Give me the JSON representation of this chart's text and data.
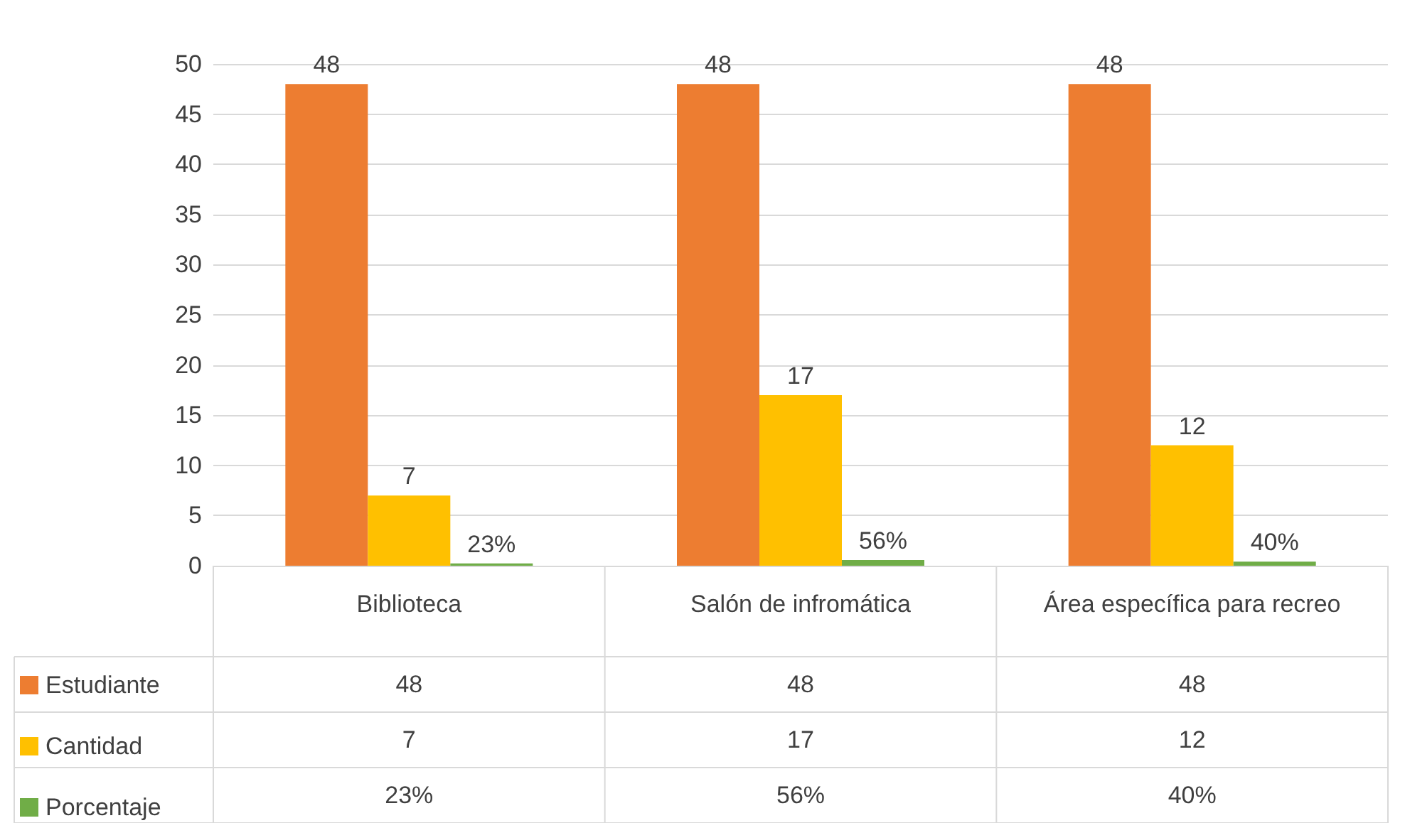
{
  "chart_data": {
    "type": "bar",
    "categories": [
      "Biblioteca",
      "Salón de infromática",
      "Área específica para recreo"
    ],
    "series": [
      {
        "name": "Estudiante",
        "color": "#ed7d31",
        "values": [
          48,
          48,
          48
        ],
        "value_labels": [
          "48",
          "48",
          "48"
        ]
      },
      {
        "name": "Cantidad",
        "color": "#ffc000",
        "values": [
          7,
          17,
          12
        ],
        "value_labels": [
          "7",
          "17",
          "12"
        ]
      },
      {
        "name": "Porcentaje",
        "color": "#70ad47",
        "values": [
          0.23,
          0.56,
          0.4
        ],
        "value_labels": [
          "23%",
          "56%",
          "40%"
        ]
      }
    ],
    "ylim": [
      0,
      50
    ],
    "yticks": [
      0,
      5,
      10,
      15,
      20,
      25,
      30,
      35,
      40,
      45,
      50
    ],
    "grid": "y",
    "legend": "bottom left"
  }
}
